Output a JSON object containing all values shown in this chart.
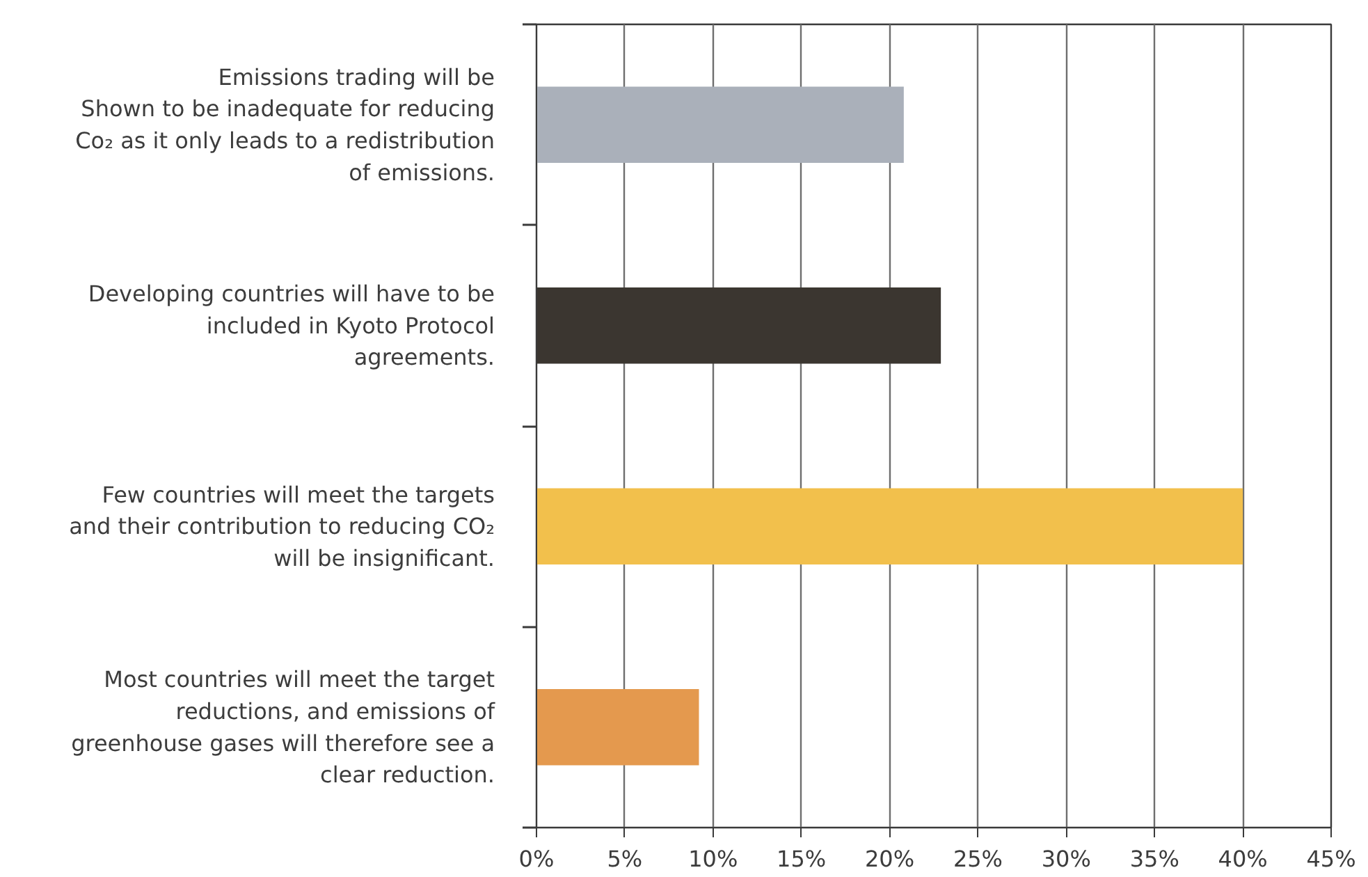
{
  "chart_data": {
    "type": "bar",
    "orientation": "horizontal",
    "categories": [
      "Emissions trading will be\nShown to be inadequate for reducing\nCo₂ as it only leads to a redistribution\nof emissions.",
      "Developing countries will have to be\nincluded in Kyoto Protocol\nagreements.",
      "Few countries will meet the targets\nand their contribution to reducing CO₂\nwill be insignificant.",
      "Most countries will meet the target\nreductions, and emissions of\ngreenhouse gases will therefore see a\nclear reduction."
    ],
    "values": [
      20.8,
      22.9,
      40,
      9.2
    ],
    "colors": [
      "#aab0ba",
      "#3b3630",
      "#f2c04c",
      "#e4994e"
    ],
    "xlim": [
      0,
      45
    ],
    "xticks": [
      {
        "value": 0,
        "label": "0%"
      },
      {
        "value": 5,
        "label": "5%"
      },
      {
        "value": 10,
        "label": "10%"
      },
      {
        "value": 15,
        "label": "15%"
      },
      {
        "value": 20,
        "label": "20%"
      },
      {
        "value": 25,
        "label": "25%"
      },
      {
        "value": 30,
        "label": "30%"
      },
      {
        "value": 35,
        "label": "35%"
      },
      {
        "value": 40,
        "label": "40%"
      },
      {
        "value": 45,
        "label": "45%"
      }
    ],
    "grid": "x"
  }
}
